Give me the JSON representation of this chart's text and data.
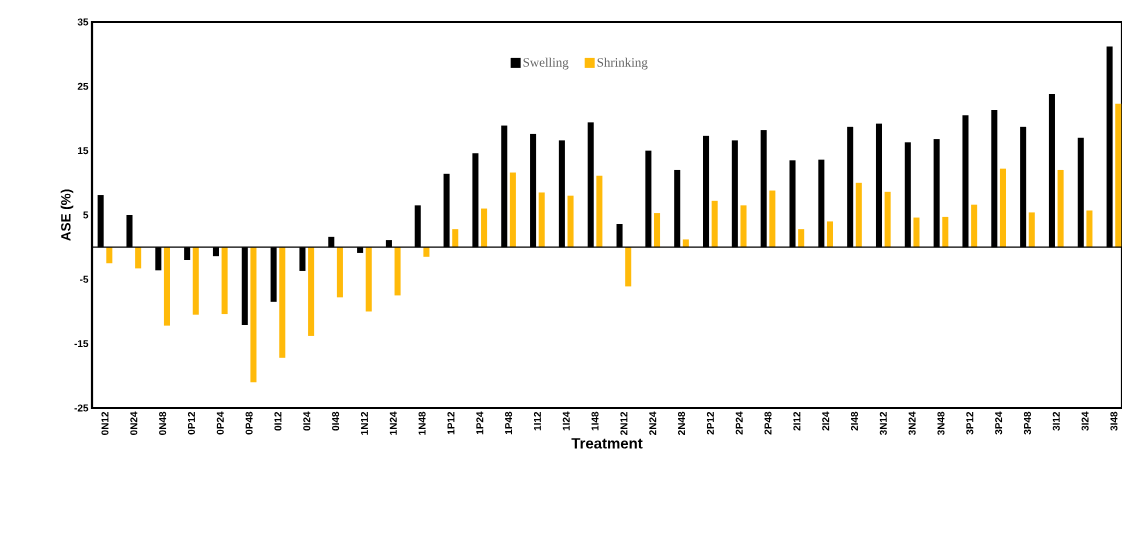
{
  "chart_data": {
    "type": "bar",
    "xlabel": "Treatment",
    "ylabel": "ASE (%)",
    "categories": [
      "0N12",
      "0N24",
      "0N48",
      "0P12",
      "0P24",
      "0P48",
      "0I12",
      "0I24",
      "0I48",
      "1N12",
      "1N24",
      "1N48",
      "1P12",
      "1P24",
      "1P48",
      "1I12",
      "1I24",
      "1I48",
      "2N12",
      "2N24",
      "2N48",
      "2P12",
      "2P24",
      "2P48",
      "2I12",
      "2I24",
      "2I48",
      "3N12",
      "3N24",
      "3N48",
      "3P12",
      "3P24",
      "3P48",
      "3I12",
      "3I24",
      "3I48"
    ],
    "series": [
      {
        "name": "Swelling",
        "color": "#000000",
        "values": [
          8.1,
          5.0,
          -3.6,
          -2.0,
          -1.4,
          -12.1,
          -8.5,
          -3.7,
          1.6,
          -0.9,
          1.1,
          6.5,
          11.4,
          14.6,
          18.9,
          17.6,
          16.6,
          19.4,
          3.6,
          15.0,
          12.0,
          17.3,
          16.6,
          18.2,
          13.5,
          13.6,
          18.7,
          19.2,
          16.3,
          16.8,
          20.5,
          21.3,
          18.7,
          23.8,
          17.0,
          31.2
        ]
      },
      {
        "name": "Shrinking",
        "color": "#ffba0a",
        "values": [
          -2.5,
          -3.3,
          -12.2,
          -10.5,
          -10.4,
          -21.0,
          -17.2,
          -13.8,
          -7.8,
          -10.0,
          -7.5,
          -1.5,
          2.8,
          6.0,
          11.6,
          8.5,
          8.0,
          11.1,
          -6.1,
          5.3,
          1.2,
          7.2,
          6.5,
          8.8,
          2.8,
          4.0,
          10.0,
          8.6,
          4.6,
          4.7,
          6.6,
          12.2,
          5.4,
          12.0,
          5.7,
          22.3
        ]
      }
    ],
    "ylim": [
      -25,
      35
    ],
    "yticks": [
      -25,
      -15,
      -5,
      5,
      15,
      25,
      35
    ],
    "grid": false,
    "legend": "top"
  }
}
